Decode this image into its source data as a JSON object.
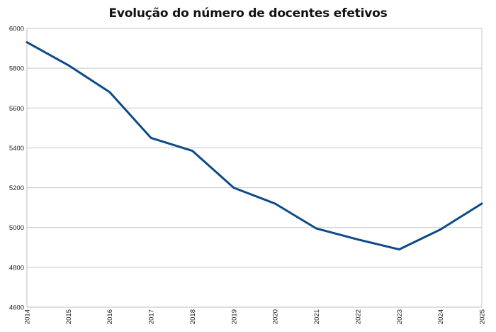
{
  "chart_data": {
    "type": "line",
    "title": "Evolução do número de docentes efetivos",
    "xlabel": "",
    "ylabel": "",
    "x": [
      "2014",
      "2015",
      "2016",
      "2017",
      "2018",
      "2019",
      "2020",
      "2021",
      "2022",
      "2023",
      "2024",
      "2025"
    ],
    "series": [
      {
        "values": [
          5930,
          5815,
          5680,
          5450,
          5385,
          5200,
          5120,
          4995,
          4940,
          4890,
          4990,
          5120
        ]
      }
    ],
    "yticks": [
      "4600",
      "4800",
      "5000",
      "5200",
      "5400",
      "5600",
      "5800",
      "6000"
    ],
    "ylim": [
      4600,
      6000
    ],
    "grid": true,
    "legend": "none",
    "line_color": "#0d4a87",
    "grid_color": "#c8c8c8"
  }
}
